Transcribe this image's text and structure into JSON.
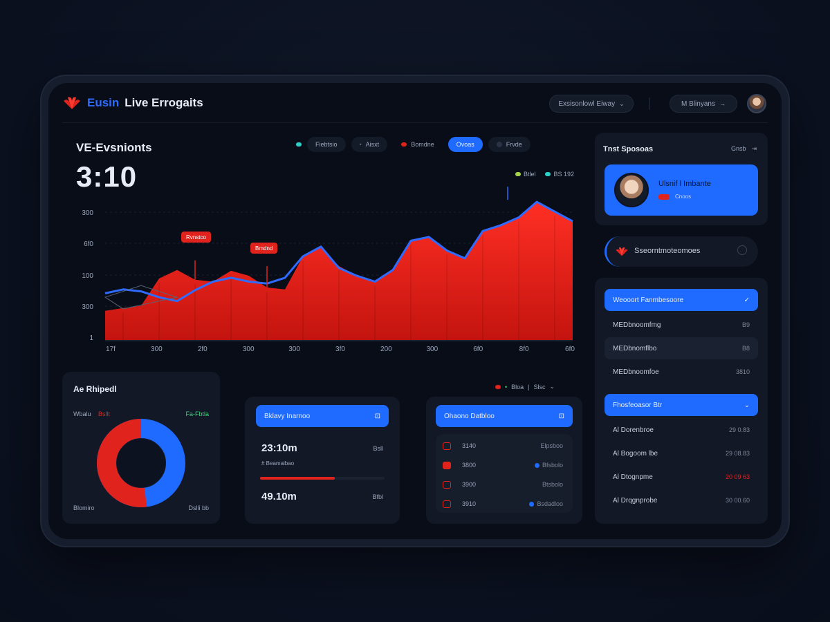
{
  "header": {
    "brand_a": "Eusin",
    "brand_b": "Live Errogaits",
    "dropdown_label": "Exsisonlowl Eiway",
    "user_label": "M Blinyans"
  },
  "chart_panel": {
    "title": "VE-Evsnionts",
    "value": "3:10",
    "filters": [
      "Fiebtsio",
      "Aisxt",
      "Bomdne",
      "Ovoas",
      "Frvde"
    ],
    "legend": [
      {
        "label": "Btlel",
        "color": "#a4d34a"
      },
      {
        "label": "BS 192",
        "color": "#2bd0c6"
      }
    ],
    "annotations": [
      "Rvnstco",
      "Bmdnd"
    ]
  },
  "chart_data": {
    "type": "area",
    "x_ticks": [
      "17f",
      "300",
      "2f0",
      "300",
      "300",
      "3f0",
      "200",
      "300",
      "6f0",
      "8f0",
      "6f0"
    ],
    "y_ticks": [
      "300",
      "6f0",
      "100",
      "300",
      "1"
    ],
    "series": [
      {
        "color": "#ff2a1f",
        "values": [
          75,
          82,
          88,
          158,
          180,
          155,
          150,
          178,
          165,
          135,
          130,
          215,
          238,
          190,
          165,
          150,
          180,
          255,
          265,
          230,
          210,
          280,
          295,
          315,
          355,
          330,
          305
        ]
      },
      {
        "color": "#2f6bff",
        "values": [
          120,
          130,
          125,
          110,
          100,
          128,
          150,
          160,
          150,
          145,
          160,
          215,
          240,
          185,
          165,
          150,
          180,
          255,
          265,
          230,
          210,
          280,
          295,
          315,
          355,
          330,
          305
        ]
      }
    ]
  },
  "donut_card": {
    "title": "Ae Rhipedl",
    "left_label": "Wbalu",
    "left_value": "Bsllt",
    "right_label": "Fa-Fbtla",
    "bottom_left": "Blomiro",
    "bottom_right": "Dslli bb",
    "legend": "Bloa",
    "legend_b": "Slsc",
    "red_fraction": 0.52,
    "blue_fraction": 0.48
  },
  "mid_card": {
    "header": "Bklavy Inarnoo",
    "row1_value": "23:10m",
    "row1_right": "Bsll",
    "row_sub": "# Beamaibao",
    "row2_value": "49.10m",
    "row2_right": "Bfbl",
    "progress_fraction": 0.6
  },
  "list_card": {
    "header": "Ohaono Datbloo",
    "rows": [
      {
        "num": "3140",
        "label": "Elpsboo"
      },
      {
        "num": "3800",
        "label": "Bfsbolo"
      },
      {
        "num": "3900",
        "label": "Btsbolo"
      },
      {
        "num": "3910",
        "label": "Bsdadloo"
      }
    ]
  },
  "sidebar": {
    "top_title": "Tnst Sposoas",
    "top_action": "Gnsb",
    "profile_name": "Ulsnif l Imbante",
    "profile_sub": "Cnoos",
    "search_text": "Sseorntmoteomoes",
    "groups": [
      {
        "header": "Weooort Fanmbesoore",
        "items": [
          {
            "label": "MEDbnoomfmg",
            "value": "B9"
          },
          {
            "label": "MEDbnomflbo",
            "value": "B8"
          },
          {
            "label": "MEDbnoomfoe",
            "value": "3810"
          }
        ]
      },
      {
        "header": "Fhosfeoasor Btr",
        "items": [
          {
            "label": "Al Dorenbroe",
            "value": "29 0.83"
          },
          {
            "label": "Al Bogoom lbe",
            "value": "29 08.83"
          },
          {
            "label": "Al Dtognpme",
            "value": "20 09 63"
          },
          {
            "label": "Al Drqgnprobe",
            "value": "30 00.60"
          }
        ]
      }
    ]
  }
}
